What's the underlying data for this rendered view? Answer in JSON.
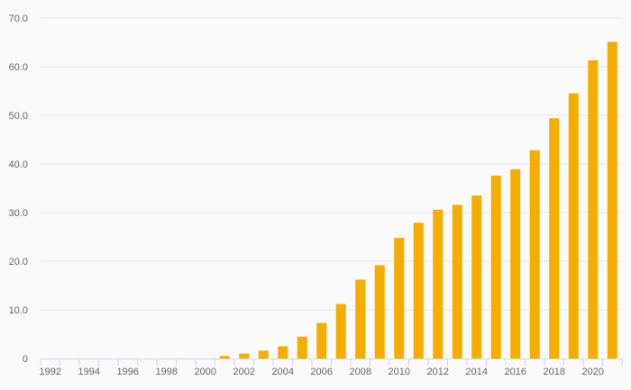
{
  "chart_data": {
    "type": "bar",
    "title": "",
    "xlabel": "",
    "ylabel": "",
    "ylim": [
      0,
      70
    ],
    "grid": true,
    "bar_color": "#f5ad00",
    "grid_color": "#e6e6e6",
    "axis_color": "#ccd6eb",
    "text_color": "#666666",
    "categories": [
      "1992",
      "1993",
      "1994",
      "1995",
      "1996",
      "1997",
      "1998",
      "1999",
      "2000",
      "2001",
      "2002",
      "2003",
      "2004",
      "2005",
      "2006",
      "2007",
      "2008",
      "2009",
      "2010",
      "2011",
      "2012",
      "2013",
      "2014",
      "2015",
      "2016",
      "2017",
      "2018",
      "2019",
      "2020",
      "2021"
    ],
    "x_tick_labels": [
      "1992",
      "1994",
      "1996",
      "1998",
      "2000",
      "2002",
      "2004",
      "2006",
      "2008",
      "2010",
      "2012",
      "2014",
      "2016",
      "2018",
      "2020"
    ],
    "y_tick_labels": [
      "0",
      "10.0",
      "20.0",
      "30.0",
      "40.0",
      "50.0",
      "60.0",
      "70.0"
    ],
    "values": [
      0,
      0,
      0,
      0,
      0,
      0,
      0,
      0,
      0,
      0.5,
      1.0,
      1.6,
      2.5,
      4.5,
      7.3,
      11.2,
      16.2,
      19.2,
      24.8,
      27.9,
      30.6,
      31.6,
      33.5,
      37.6,
      38.9,
      42.8,
      49.4,
      54.5,
      61.3,
      65.1
    ]
  }
}
